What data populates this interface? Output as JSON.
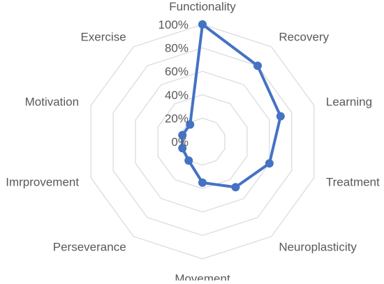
{
  "chart_data": {
    "type": "radar",
    "title": "",
    "categories": [
      "Functionality",
      "Recovery",
      "Learning",
      "Treatment",
      "Neuroplasticity",
      "Movement",
      "Perseverance",
      "Imrprovement",
      "Motivation",
      "Exercise"
    ],
    "series": [
      {
        "values": [
          100,
          80,
          70,
          60,
          48,
          35,
          20,
          18,
          18,
          18
        ],
        "color": "#4472c4"
      }
    ],
    "r_axis": {
      "min": 0,
      "max": 100,
      "ticks": [
        "0%",
        "20%",
        "40%",
        "60%",
        "80%",
        "100%"
      ]
    },
    "grid": true,
    "legend": "none"
  }
}
